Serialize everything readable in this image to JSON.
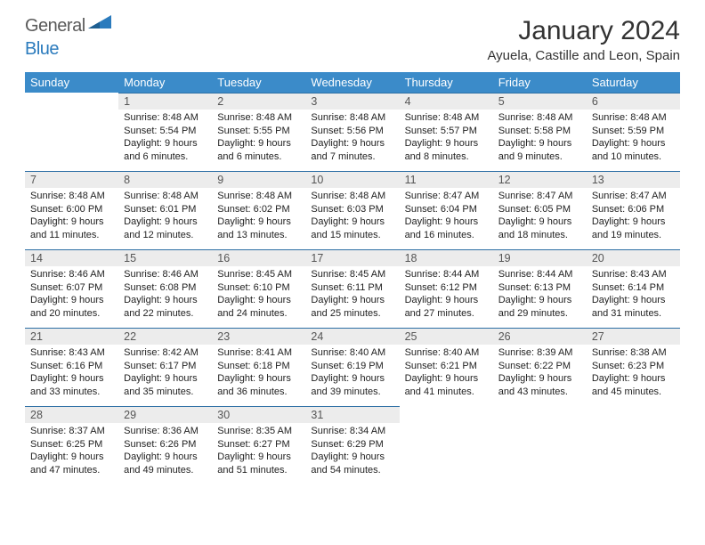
{
  "logo": {
    "part1": "General",
    "part2": "Blue",
    "triangle_color": "#2b7bbd"
  },
  "title": "January 2024",
  "location": "Ayuela, Castille and Leon, Spain",
  "header_bg": "#3b8bc9",
  "daynum_bg": "#ececec",
  "rule_color": "#2d6fa5",
  "day_headers": [
    "Sunday",
    "Monday",
    "Tuesday",
    "Wednesday",
    "Thursday",
    "Friday",
    "Saturday"
  ],
  "weeks": [
    [
      null,
      {
        "n": "1",
        "sr": "8:48 AM",
        "ss": "5:54 PM",
        "dl": "9 hours and 6 minutes."
      },
      {
        "n": "2",
        "sr": "8:48 AM",
        "ss": "5:55 PM",
        "dl": "9 hours and 6 minutes."
      },
      {
        "n": "3",
        "sr": "8:48 AM",
        "ss": "5:56 PM",
        "dl": "9 hours and 7 minutes."
      },
      {
        "n": "4",
        "sr": "8:48 AM",
        "ss": "5:57 PM",
        "dl": "9 hours and 8 minutes."
      },
      {
        "n": "5",
        "sr": "8:48 AM",
        "ss": "5:58 PM",
        "dl": "9 hours and 9 minutes."
      },
      {
        "n": "6",
        "sr": "8:48 AM",
        "ss": "5:59 PM",
        "dl": "9 hours and 10 minutes."
      }
    ],
    [
      {
        "n": "7",
        "sr": "8:48 AM",
        "ss": "6:00 PM",
        "dl": "9 hours and 11 minutes."
      },
      {
        "n": "8",
        "sr": "8:48 AM",
        "ss": "6:01 PM",
        "dl": "9 hours and 12 minutes."
      },
      {
        "n": "9",
        "sr": "8:48 AM",
        "ss": "6:02 PM",
        "dl": "9 hours and 13 minutes."
      },
      {
        "n": "10",
        "sr": "8:48 AM",
        "ss": "6:03 PM",
        "dl": "9 hours and 15 minutes."
      },
      {
        "n": "11",
        "sr": "8:47 AM",
        "ss": "6:04 PM",
        "dl": "9 hours and 16 minutes."
      },
      {
        "n": "12",
        "sr": "8:47 AM",
        "ss": "6:05 PM",
        "dl": "9 hours and 18 minutes."
      },
      {
        "n": "13",
        "sr": "8:47 AM",
        "ss": "6:06 PM",
        "dl": "9 hours and 19 minutes."
      }
    ],
    [
      {
        "n": "14",
        "sr": "8:46 AM",
        "ss": "6:07 PM",
        "dl": "9 hours and 20 minutes."
      },
      {
        "n": "15",
        "sr": "8:46 AM",
        "ss": "6:08 PM",
        "dl": "9 hours and 22 minutes."
      },
      {
        "n": "16",
        "sr": "8:45 AM",
        "ss": "6:10 PM",
        "dl": "9 hours and 24 minutes."
      },
      {
        "n": "17",
        "sr": "8:45 AM",
        "ss": "6:11 PM",
        "dl": "9 hours and 25 minutes."
      },
      {
        "n": "18",
        "sr": "8:44 AM",
        "ss": "6:12 PM",
        "dl": "9 hours and 27 minutes."
      },
      {
        "n": "19",
        "sr": "8:44 AM",
        "ss": "6:13 PM",
        "dl": "9 hours and 29 minutes."
      },
      {
        "n": "20",
        "sr": "8:43 AM",
        "ss": "6:14 PM",
        "dl": "9 hours and 31 minutes."
      }
    ],
    [
      {
        "n": "21",
        "sr": "8:43 AM",
        "ss": "6:16 PM",
        "dl": "9 hours and 33 minutes."
      },
      {
        "n": "22",
        "sr": "8:42 AM",
        "ss": "6:17 PM",
        "dl": "9 hours and 35 minutes."
      },
      {
        "n": "23",
        "sr": "8:41 AM",
        "ss": "6:18 PM",
        "dl": "9 hours and 36 minutes."
      },
      {
        "n": "24",
        "sr": "8:40 AM",
        "ss": "6:19 PM",
        "dl": "9 hours and 39 minutes."
      },
      {
        "n": "25",
        "sr": "8:40 AM",
        "ss": "6:21 PM",
        "dl": "9 hours and 41 minutes."
      },
      {
        "n": "26",
        "sr": "8:39 AM",
        "ss": "6:22 PM",
        "dl": "9 hours and 43 minutes."
      },
      {
        "n": "27",
        "sr": "8:38 AM",
        "ss": "6:23 PM",
        "dl": "9 hours and 45 minutes."
      }
    ],
    [
      {
        "n": "28",
        "sr": "8:37 AM",
        "ss": "6:25 PM",
        "dl": "9 hours and 47 minutes."
      },
      {
        "n": "29",
        "sr": "8:36 AM",
        "ss": "6:26 PM",
        "dl": "9 hours and 49 minutes."
      },
      {
        "n": "30",
        "sr": "8:35 AM",
        "ss": "6:27 PM",
        "dl": "9 hours and 51 minutes."
      },
      {
        "n": "31",
        "sr": "8:34 AM",
        "ss": "6:29 PM",
        "dl": "9 hours and 54 minutes."
      },
      null,
      null,
      null
    ]
  ]
}
